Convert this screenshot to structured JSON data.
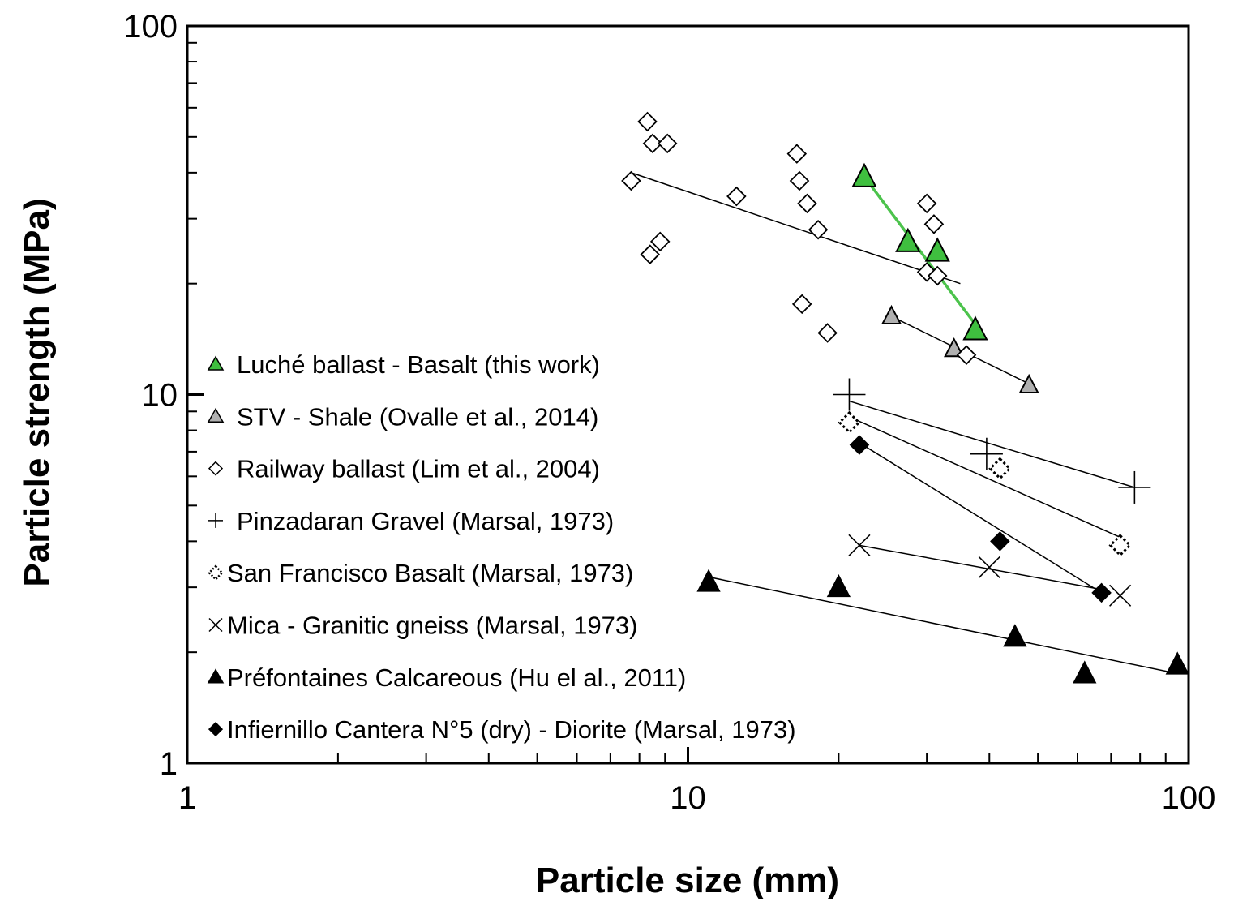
{
  "chart_data": {
    "type": "scatter",
    "title": "",
    "xlabel": "Particle size (mm)",
    "ylabel": "Particle strength (MPa)",
    "xscale": "log",
    "yscale": "log",
    "xlim": [
      1,
      100
    ],
    "ylim": [
      1,
      100
    ],
    "x_ticks": [
      {
        "value": 1,
        "label": "1"
      },
      {
        "value": 10,
        "label": "10"
      },
      {
        "value": 100,
        "label": "100"
      }
    ],
    "y_ticks": [
      {
        "value": 1,
        "label": "1"
      },
      {
        "value": 10,
        "label": "10"
      },
      {
        "value": 100,
        "label": "100"
      }
    ],
    "grid": false,
    "legend_position": "lower-left",
    "series": [
      {
        "name": "Luché ballast - Basalt (this work)",
        "marker": "triangle-green",
        "points": [
          [
            22.5,
            39
          ],
          [
            27.5,
            26
          ],
          [
            31.5,
            24.5
          ],
          [
            37.5,
            15
          ]
        ],
        "fit": [
          [
            22.5,
            39
          ],
          [
            37.5,
            15.5
          ]
        ],
        "fit_color": "#4cc34c"
      },
      {
        "name": "STV - Shale (Ovalle et al., 2014)",
        "marker": "triangle-gray",
        "points": [
          [
            25.5,
            16.3
          ],
          [
            34,
            13.3
          ],
          [
            48,
            10.6
          ]
        ],
        "fit": [
          [
            25.5,
            16.3
          ],
          [
            48,
            10.7
          ]
        ],
        "fit_color": "#000000"
      },
      {
        "name": "Railway ballast (Lim et al., 2004)",
        "marker": "diamond-open",
        "points": [
          [
            8.3,
            55
          ],
          [
            8.5,
            48
          ],
          [
            9.1,
            48
          ],
          [
            7.7,
            38
          ],
          [
            12.5,
            34.5
          ],
          [
            8.8,
            26
          ],
          [
            8.4,
            24
          ],
          [
            16.5,
            45
          ],
          [
            16.7,
            38
          ],
          [
            17.3,
            33
          ],
          [
            18.2,
            28
          ],
          [
            30,
            33
          ],
          [
            31,
            29
          ],
          [
            30,
            21.5
          ],
          [
            31.5,
            21
          ],
          [
            16.9,
            17.6
          ],
          [
            19,
            14.7
          ],
          [
            36,
            12.8
          ]
        ],
        "fit": [
          [
            7.7,
            40
          ],
          [
            35,
            20
          ]
        ],
        "fit_color": "#000000"
      },
      {
        "name": "Pinzadaran Gravel (Marsal, 1973)",
        "marker": "plus",
        "points": [
          [
            21,
            10
          ],
          [
            39.5,
            6.9
          ],
          [
            78,
            5.6
          ]
        ],
        "fit": [
          [
            21,
            9.6
          ],
          [
            78,
            5.6
          ]
        ],
        "fit_color": "#000000"
      },
      {
        "name": "San Francisco Basalt (Marsal, 1973)",
        "marker": "diamond-dotted",
        "points": [
          [
            21,
            8.4
          ],
          [
            42,
            6.3
          ],
          [
            73,
            3.9
          ]
        ],
        "fit": [
          [
            21,
            8.7
          ],
          [
            73,
            4.1
          ]
        ],
        "fit_color": "#000000"
      },
      {
        "name": "Mica - Granitic gneiss (Marsal, 1973)",
        "marker": "x",
        "points": [
          [
            22,
            3.9
          ],
          [
            40,
            3.4
          ],
          [
            73,
            2.85
          ]
        ],
        "fit": [
          [
            22,
            3.9
          ],
          [
            68,
            2.95
          ]
        ],
        "fit_color": "#000000"
      },
      {
        "name": "Préfontaines Calcareous (Hu el al., 2011)",
        "marker": "triangle-black",
        "points": [
          [
            11,
            3.1
          ],
          [
            20,
            3
          ],
          [
            45,
            2.2
          ],
          [
            62,
            1.75
          ],
          [
            95,
            1.85
          ]
        ],
        "fit": [
          [
            11,
            3.2
          ],
          [
            95,
            1.75
          ]
        ],
        "fit_color": "#000000"
      },
      {
        "name": "Infiernillo Cantera N°5 (dry) - Diorite (Marsal, 1973)",
        "marker": "diamond-black",
        "points": [
          [
            22,
            7.3
          ],
          [
            42,
            4
          ],
          [
            67,
            2.9
          ]
        ],
        "fit": [
          [
            22,
            7.4
          ],
          [
            67,
            2.9
          ]
        ],
        "fit_color": "#000000"
      }
    ]
  }
}
